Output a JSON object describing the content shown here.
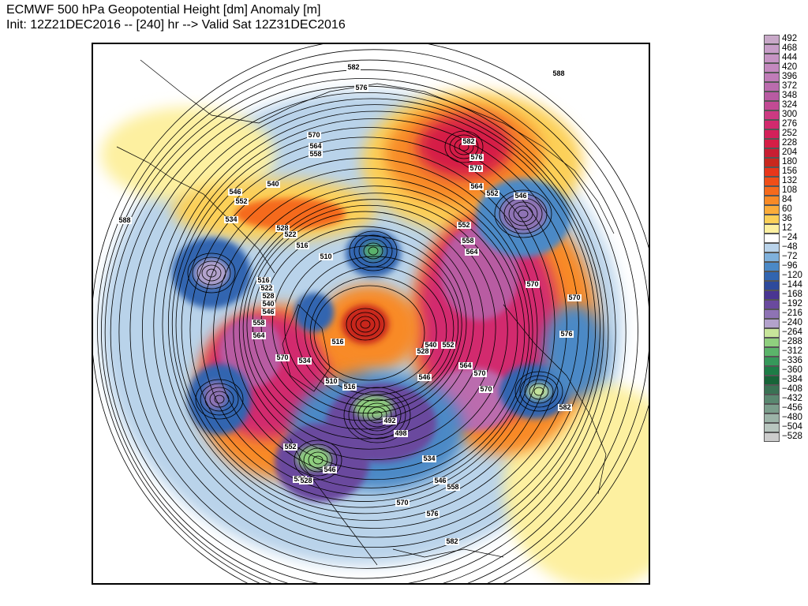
{
  "header": {
    "title_line1": "ECMWF 500 hPa Geopotential Height [dm] Anomaly [m]",
    "title_line2": "Init: 12Z21DEC2016 -- [240] hr --> Valid Sat 12Z31DEC2016"
  },
  "colorbar": {
    "labels": [
      "492",
      "468",
      "444",
      "420",
      "396",
      "372",
      "348",
      "324",
      "300",
      "276",
      "252",
      "228",
      "204",
      "180",
      "156",
      "132",
      "108",
      "84",
      "60",
      "36",
      "12",
      "−24",
      "−48",
      "−72",
      "−96",
      "−120",
      "−144",
      "−168",
      "−192",
      "−216",
      "−240",
      "−264",
      "−288",
      "−312",
      "−336",
      "−360",
      "−384",
      "−408",
      "−432",
      "−456",
      "−480",
      "−504",
      "−528"
    ],
    "colors": [
      "#c8a8c8",
      "#c79ec8",
      "#c694c4",
      "#c489bf",
      "#c07cb8",
      "#bb6cae",
      "#b85ba2",
      "#c24a94",
      "#cc3a82",
      "#d22a6e",
      "#d4205a",
      "#d51e46",
      "#c81e32",
      "#c8281e",
      "#e8361a",
      "#f04e18",
      "#f56a1c",
      "#f88a26",
      "#fbac3a",
      "#fcd058",
      "#fdf0a0",
      "#ffffff",
      "#b9d3ea",
      "#7fb1dc",
      "#4b89c6",
      "#3265b0",
      "#2e4a9c",
      "#4a3592",
      "#6a4a9e",
      "#8e73b4",
      "#b3a2cc",
      "#c7e59a",
      "#8fcf7e",
      "#5bb46a",
      "#36985a",
      "#1d7c46",
      "#176438",
      "#3a7254",
      "#5a8870",
      "#7b9e8c",
      "#9cb4a8",
      "#b8c6bf",
      "#cccccc"
    ]
  },
  "map": {
    "contour_unit": "dm",
    "height_labels": [
      "582",
      "576",
      "588",
      "570",
      "564",
      "558",
      "582",
      "576",
      "570",
      "564",
      "552",
      "546",
      "540",
      "546",
      "552",
      "534",
      "528",
      "522",
      "516",
      "510",
      "558",
      "564",
      "552",
      "570",
      "570",
      "588",
      "516",
      "522",
      "528",
      "540",
      "546",
      "558",
      "564",
      "516",
      "510",
      "534",
      "570",
      "564",
      "552",
      "582",
      "576",
      "570",
      "546",
      "540",
      "528",
      "534",
      "516",
      "492",
      "498",
      "534",
      "546",
      "558",
      "570",
      "576",
      "582",
      "528",
      "546",
      "552",
      "570"
    ],
    "anomaly_centers": [
      {
        "sign": "positive",
        "region": "northern Eurasia"
      },
      {
        "sign": "positive",
        "region": "North Atlantic"
      },
      {
        "sign": "positive",
        "region": "North Pacific / Alaska"
      },
      {
        "sign": "positive",
        "region": "Arctic Ocean"
      },
      {
        "sign": "negative",
        "region": "western Canada / Hudson Bay"
      },
      {
        "sign": "negative",
        "region": "Sea of Okhotsk"
      },
      {
        "sign": "negative",
        "region": "Iceland low"
      },
      {
        "sign": "negative",
        "region": "Barents Sea"
      },
      {
        "sign": "negative",
        "region": "Azores / Iberia"
      },
      {
        "sign": "negative",
        "region": "western US"
      }
    ]
  }
}
